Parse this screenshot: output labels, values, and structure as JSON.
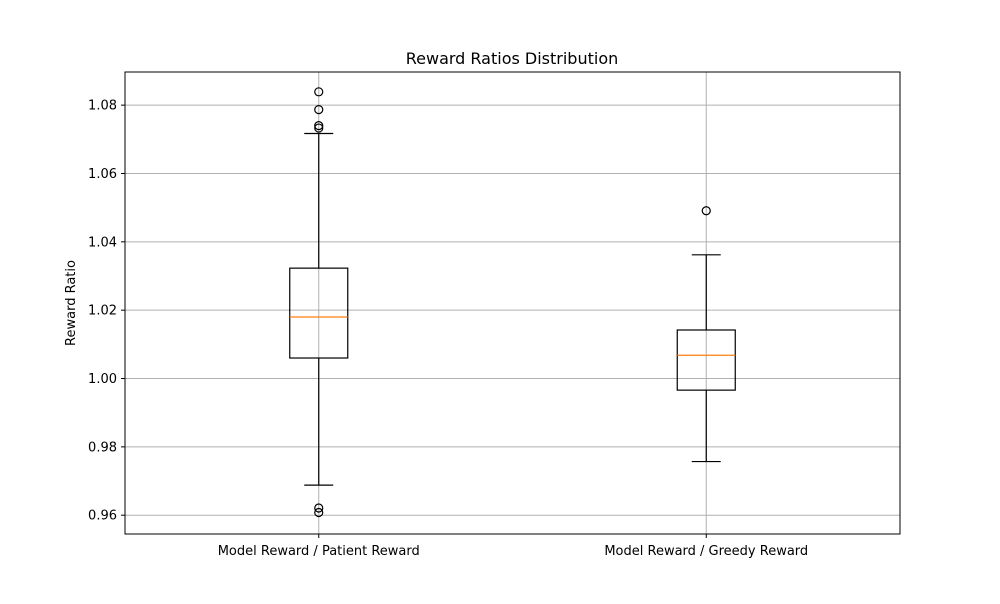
{
  "chart_data": {
    "type": "box",
    "title": "Reward Ratios Distribution",
    "xlabel": "",
    "ylabel": "Reward Ratio",
    "ylim": [
      0.9545,
      1.0897
    ],
    "yticks": [
      0.96,
      0.98,
      1.0,
      1.02,
      1.04,
      1.06,
      1.08
    ],
    "ytick_labels": [
      "0.96",
      "0.98",
      "1.00",
      "1.02",
      "1.04",
      "1.06",
      "1.08"
    ],
    "grid": true,
    "colors": {
      "box": "#000000",
      "median": "#ff7f0e",
      "grid": "#b0b0b0"
    },
    "categories": [
      "Model Reward / Patient Reward",
      "Model Reward / Greedy Reward"
    ],
    "boxes": [
      {
        "category": "Model Reward / Patient Reward",
        "whisker_low": 0.9688,
        "q1": 1.006,
        "median": 1.018,
        "q3": 1.0323,
        "whisker_high": 1.0717,
        "outliers": [
          1.0839,
          1.0787,
          1.074,
          1.0733,
          0.9621,
          0.9608
        ]
      },
      {
        "category": "Model Reward / Greedy Reward",
        "whisker_low": 0.9757,
        "q1": 0.9966,
        "median": 1.0068,
        "q3": 1.0142,
        "whisker_high": 1.0362,
        "outliers": [
          1.0491
        ]
      }
    ]
  }
}
